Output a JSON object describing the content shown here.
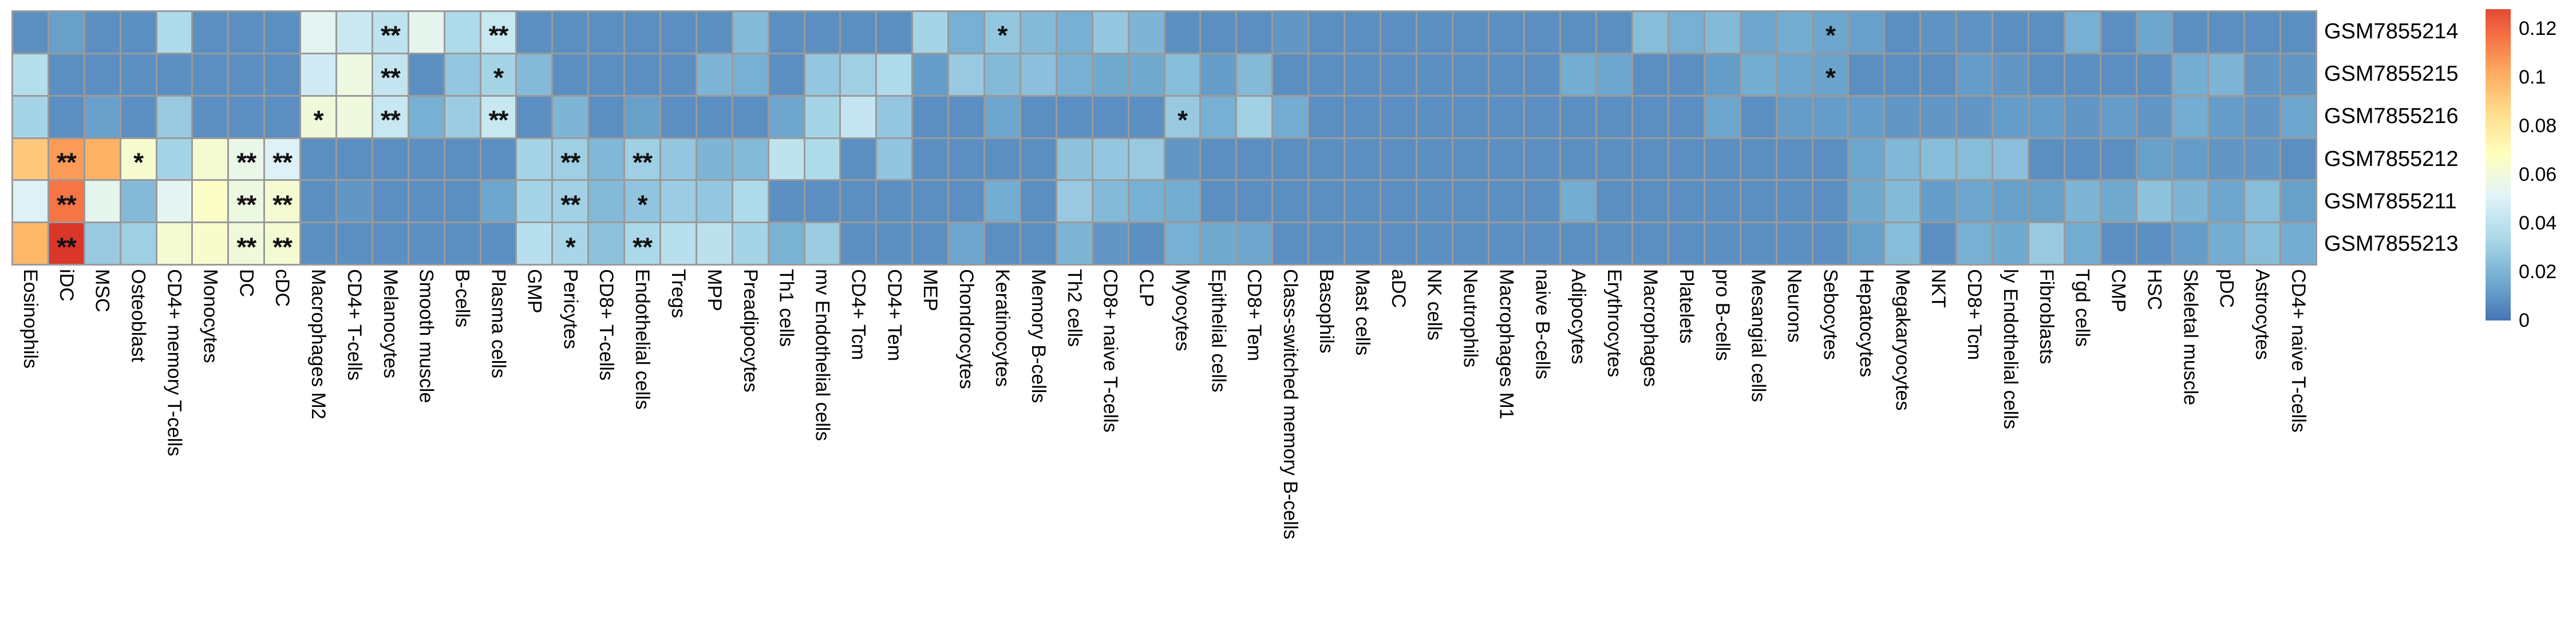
{
  "chart_data": {
    "type": "heatmap",
    "title": "",
    "xlabel": "",
    "ylabel": "",
    "grid_color": "#9a9a9a",
    "rows": [
      "GSM7855214",
      "GSM7855215",
      "GSM7855216",
      "GSM7855212",
      "GSM7855211",
      "GSM7855213"
    ],
    "columns": [
      "Eosinophils",
      "iDC",
      "MSC",
      "Osteoblast",
      "CD4+ memory T-cells",
      "Monocytes",
      "DC",
      "cDC",
      "Macrophages M2",
      "CD4+ T-cells",
      "Melanocytes",
      "Smooth muscle",
      "B-cells",
      "Plasma cells",
      "GMP",
      "Pericytes",
      "CD8+ T-cells",
      "Endothelial cells",
      "Tregs",
      "MPP",
      "Preadipocytes",
      "Th1 cells",
      "mv Endothelial cells",
      "CD4+ Tcm",
      "CD4+ Tem",
      "MEP",
      "Chondrocytes",
      "Keratinocytes",
      "Memory B-cells",
      "Th2 cells",
      "CD8+ naive T-cells",
      "CLP",
      "Myocytes",
      "Epithelial cells",
      "CD8+ Tem",
      "Class-switched memory B-cells",
      "Basophils",
      "Mast cells",
      "aDC",
      "NK cells",
      "Neutrophils",
      "Macrophages M1",
      "naive B-cells",
      "Adipocytes",
      "Erythrocytes",
      "Macrophages",
      "Platelets",
      "pro B-cells",
      "Mesangial cells",
      "Neurons",
      "Sebocytes",
      "Hepatocytes",
      "Megakaryocytes",
      "NKT",
      "CD8+ Tcm",
      "ly Endothelial cells",
      "Fibroblasts",
      "Tgd cells",
      "CMP",
      "HSC",
      "Skeletal muscle",
      "pDC",
      "Astrocytes",
      "CD4+ naive T-cells"
    ],
    "values": [
      [
        0.008,
        0.013,
        0.008,
        0.008,
        0.035,
        0.008,
        0.008,
        0.008,
        0.053,
        0.044,
        0.04,
        0.054,
        0.035,
        0.043,
        0.008,
        0.008,
        0.008,
        0.008,
        0.008,
        0.008,
        0.022,
        0.008,
        0.008,
        0.008,
        0.008,
        0.032,
        0.018,
        0.027,
        0.022,
        0.018,
        0.027,
        0.02,
        0.008,
        0.008,
        0.008,
        0.01,
        0.008,
        0.008,
        0.008,
        0.008,
        0.008,
        0.008,
        0.008,
        0.008,
        0.008,
        0.023,
        0.018,
        0.022,
        0.015,
        0.017,
        0.015,
        0.013,
        0.008,
        0.009,
        0.009,
        0.008,
        0.008,
        0.018,
        0.008,
        0.015,
        0.008,
        0.008,
        0.008,
        0.008
      ],
      [
        0.037,
        0.008,
        0.008,
        0.008,
        0.008,
        0.008,
        0.008,
        0.008,
        0.046,
        0.058,
        0.042,
        0.008,
        0.027,
        0.032,
        0.022,
        0.008,
        0.008,
        0.008,
        0.008,
        0.02,
        0.018,
        0.008,
        0.027,
        0.03,
        0.035,
        0.012,
        0.028,
        0.022,
        0.024,
        0.018,
        0.016,
        0.016,
        0.023,
        0.012,
        0.022,
        0.008,
        0.008,
        0.008,
        0.008,
        0.008,
        0.008,
        0.008,
        0.008,
        0.017,
        0.015,
        0.008,
        0.008,
        0.012,
        0.017,
        0.015,
        0.014,
        0.008,
        0.008,
        0.008,
        0.012,
        0.01,
        0.008,
        0.008,
        0.008,
        0.008,
        0.017,
        0.02,
        0.01,
        0.01
      ],
      [
        0.032,
        0.008,
        0.013,
        0.008,
        0.028,
        0.008,
        0.008,
        0.008,
        0.06,
        0.059,
        0.043,
        0.018,
        0.029,
        0.043,
        0.008,
        0.02,
        0.008,
        0.013,
        0.008,
        0.008,
        0.008,
        0.015,
        0.032,
        0.042,
        0.027,
        0.008,
        0.008,
        0.015,
        0.008,
        0.008,
        0.008,
        0.008,
        0.028,
        0.018,
        0.031,
        0.017,
        0.008,
        0.008,
        0.008,
        0.008,
        0.008,
        0.008,
        0.008,
        0.008,
        0.008,
        0.008,
        0.008,
        0.015,
        0.008,
        0.012,
        0.012,
        0.012,
        0.01,
        0.01,
        0.01,
        0.012,
        0.012,
        0.01,
        0.012,
        0.01,
        0.017,
        0.012,
        0.01,
        0.015
      ],
      [
        0.092,
        0.106,
        0.1,
        0.063,
        0.032,
        0.062,
        0.056,
        0.05,
        0.008,
        0.008,
        0.008,
        0.008,
        0.008,
        0.008,
        0.032,
        0.03,
        0.021,
        0.03,
        0.027,
        0.02,
        0.022,
        0.04,
        0.035,
        0.008,
        0.026,
        0.008,
        0.008,
        0.008,
        0.008,
        0.025,
        0.027,
        0.028,
        0.01,
        0.008,
        0.008,
        0.008,
        0.008,
        0.008,
        0.008,
        0.008,
        0.008,
        0.008,
        0.008,
        0.008,
        0.008,
        0.008,
        0.008,
        0.008,
        0.008,
        0.008,
        0.008,
        0.015,
        0.021,
        0.023,
        0.023,
        0.024,
        0.008,
        0.008,
        0.008,
        0.013,
        0.012,
        0.01,
        0.01,
        0.008
      ],
      [
        0.05,
        0.116,
        0.054,
        0.022,
        0.053,
        0.066,
        0.058,
        0.062,
        0.008,
        0.01,
        0.008,
        0.008,
        0.008,
        0.015,
        0.032,
        0.031,
        0.022,
        0.026,
        0.029,
        0.027,
        0.035,
        0.008,
        0.008,
        0.008,
        0.008,
        0.008,
        0.008,
        0.017,
        0.008,
        0.028,
        0.022,
        0.018,
        0.017,
        0.008,
        0.008,
        0.008,
        0.008,
        0.008,
        0.008,
        0.008,
        0.008,
        0.008,
        0.008,
        0.017,
        0.008,
        0.008,
        0.008,
        0.008,
        0.008,
        0.008,
        0.008,
        0.016,
        0.022,
        0.012,
        0.015,
        0.013,
        0.013,
        0.02,
        0.016,
        0.025,
        0.02,
        0.015,
        0.023,
        0.013
      ],
      [
        0.098,
        0.133,
        0.028,
        0.03,
        0.062,
        0.064,
        0.06,
        0.062,
        0.008,
        0.008,
        0.008,
        0.008,
        0.008,
        0.008,
        0.038,
        0.033,
        0.025,
        0.034,
        0.038,
        0.039,
        0.032,
        0.019,
        0.029,
        0.008,
        0.008,
        0.008,
        0.015,
        0.008,
        0.008,
        0.02,
        0.01,
        0.008,
        0.018,
        0.016,
        0.015,
        0.008,
        0.008,
        0.008,
        0.008,
        0.008,
        0.008,
        0.008,
        0.008,
        0.008,
        0.008,
        0.008,
        0.008,
        0.008,
        0.008,
        0.008,
        0.008,
        0.013,
        0.023,
        0.008,
        0.018,
        0.016,
        0.028,
        0.017,
        0.008,
        0.008,
        0.012,
        0.017,
        0.023,
        0.017
      ]
    ],
    "annotations": [
      {
        "row": 0,
        "col": 10,
        "text": "**"
      },
      {
        "row": 0,
        "col": 13,
        "text": "**"
      },
      {
        "row": 0,
        "col": 27,
        "text": "*"
      },
      {
        "row": 0,
        "col": 50,
        "text": "*"
      },
      {
        "row": 1,
        "col": 10,
        "text": "**"
      },
      {
        "row": 1,
        "col": 13,
        "text": "*"
      },
      {
        "row": 1,
        "col": 50,
        "text": "*"
      },
      {
        "row": 2,
        "col": 8,
        "text": "*"
      },
      {
        "row": 2,
        "col": 10,
        "text": "**"
      },
      {
        "row": 2,
        "col": 13,
        "text": "**"
      },
      {
        "row": 2,
        "col": 32,
        "text": "*"
      },
      {
        "row": 3,
        "col": 1,
        "text": "**"
      },
      {
        "row": 3,
        "col": 3,
        "text": "*"
      },
      {
        "row": 3,
        "col": 6,
        "text": "**"
      },
      {
        "row": 3,
        "col": 7,
        "text": "**"
      },
      {
        "row": 3,
        "col": 15,
        "text": "**"
      },
      {
        "row": 3,
        "col": 17,
        "text": "**"
      },
      {
        "row": 4,
        "col": 1,
        "text": "**"
      },
      {
        "row": 4,
        "col": 6,
        "text": "**"
      },
      {
        "row": 4,
        "col": 7,
        "text": "**"
      },
      {
        "row": 4,
        "col": 15,
        "text": "**"
      },
      {
        "row": 4,
        "col": 17,
        "text": "*"
      },
      {
        "row": 5,
        "col": 1,
        "text": "**"
      },
      {
        "row": 5,
        "col": 6,
        "text": "**"
      },
      {
        "row": 5,
        "col": 7,
        "text": "**"
      },
      {
        "row": 5,
        "col": 15,
        "text": "*"
      },
      {
        "row": 5,
        "col": 17,
        "text": "**"
      }
    ],
    "colormap_stops": [
      [
        0.0,
        "#4575b4"
      ],
      [
        0.017,
        "#74add1"
      ],
      [
        0.034,
        "#abd9e9"
      ],
      [
        0.051,
        "#e0f3f8"
      ],
      [
        0.068,
        "#ffffbf"
      ],
      [
        0.084,
        "#fee090"
      ],
      [
        0.101,
        "#fdae61"
      ],
      [
        0.118,
        "#f46d43"
      ],
      [
        0.135,
        "#d73027"
      ]
    ],
    "legend_position": "right",
    "colorbar": {
      "vmin": 0,
      "vmax": 0.128,
      "tick_labels": [
        "0.12",
        "0.1",
        "0.08",
        "0.06",
        "0.04",
        "0.02",
        "0"
      ],
      "tick_values": [
        0.12,
        0.1,
        0.08,
        0.06,
        0.04,
        0.02,
        0
      ]
    }
  }
}
